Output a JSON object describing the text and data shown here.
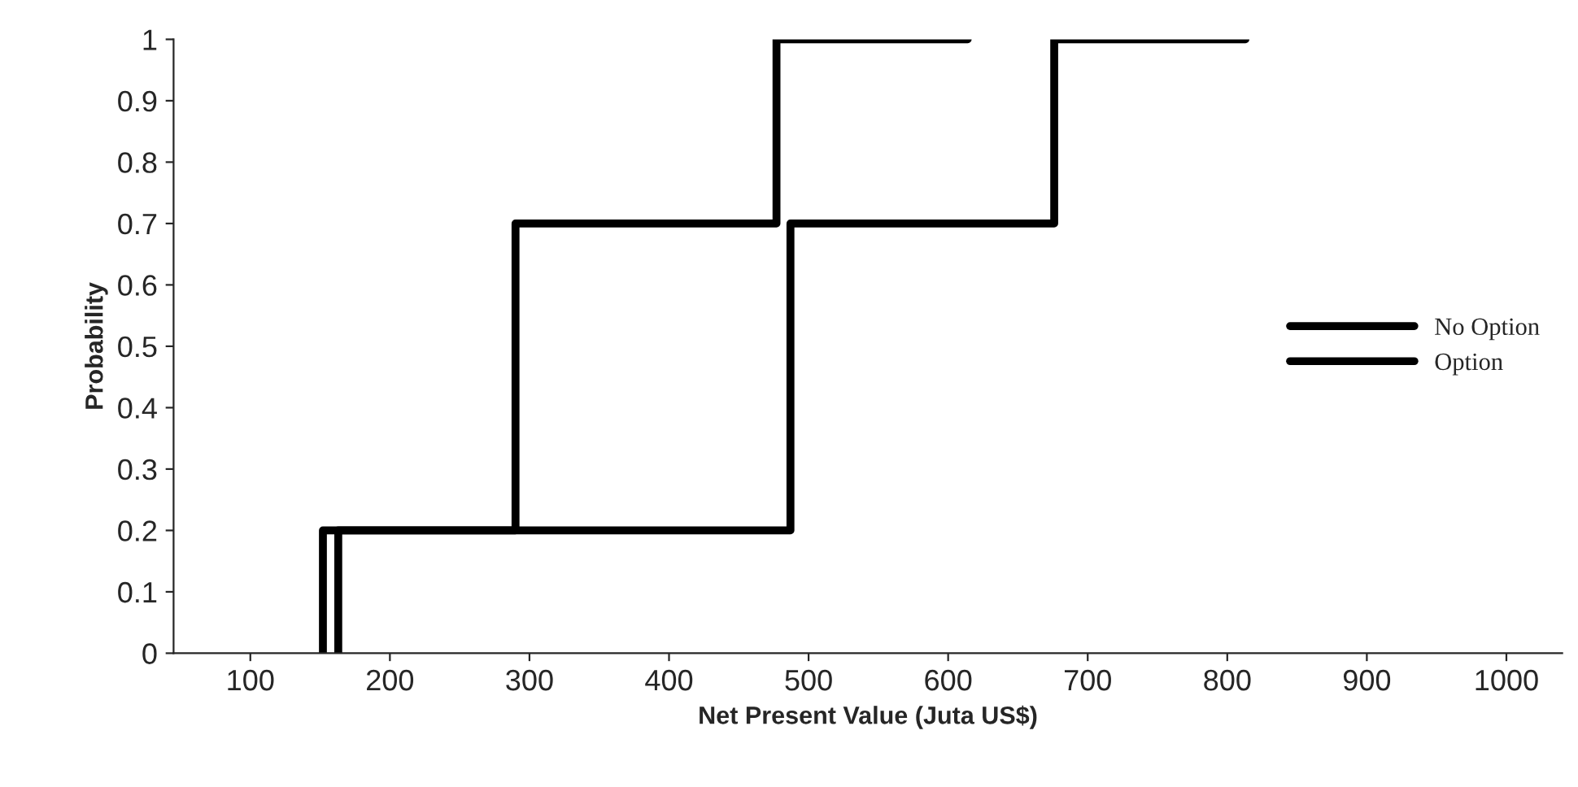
{
  "chart_data": {
    "type": "step",
    "xlabel": "Net Present Value (Juta US$)",
    "ylabel": "Probability",
    "xlim": [
      45,
      1040
    ],
    "xticks": [
      100,
      200,
      300,
      400,
      500,
      600,
      700,
      800,
      900,
      1000
    ],
    "ylim": [
      0,
      1
    ],
    "yticks": [
      0,
      0.1,
      0.2,
      0.3,
      0.4,
      0.5,
      0.6,
      0.7,
      0.8,
      0.9,
      1
    ],
    "grid": false,
    "legend": "center right",
    "marker": "none",
    "series": [
      {
        "name": "No Option",
        "color": "#000000",
        "x": [
          152,
          152,
          290,
          477,
          614
        ],
        "values": [
          0,
          0.2,
          0.7,
          1,
          1
        ]
      },
      {
        "name": "Option",
        "color": "#000000",
        "x": [
          163,
          163,
          487,
          676,
          813
        ],
        "values": [
          0,
          0.2,
          0.7,
          1,
          1
        ]
      }
    ]
  }
}
